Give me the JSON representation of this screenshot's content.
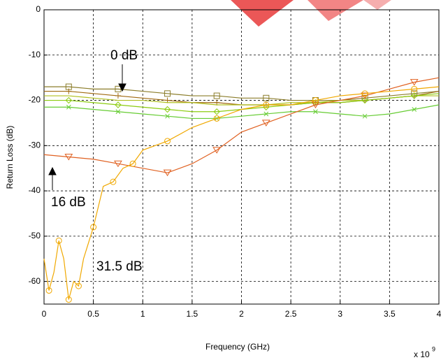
{
  "chart_data": {
    "type": "line",
    "xlabel": "Frequency (GHz)",
    "ylabel": "Return Loss (dB)",
    "x_scale_label": {
      "base": "x 10",
      "exponent": "9"
    },
    "annotations": [
      "0 dB",
      "16 dB",
      "31.5 dB"
    ],
    "xlim": [
      0,
      4
    ],
    "ylim": [
      -65,
      0
    ],
    "xticks": [
      0,
      0.5,
      1,
      1.5,
      2,
      2.5,
      3,
      3.5,
      4
    ],
    "yticks": [
      0,
      -10,
      -20,
      -30,
      -40,
      -50,
      -60
    ],
    "grid": true,
    "series": [
      {
        "color": "#8b7d2a",
        "marker": "square",
        "x": [
          0,
          0.25,
          0.5,
          0.75,
          1,
          1.25,
          1.5,
          1.75,
          2,
          2.25,
          2.5,
          2.75,
          3,
          3.25,
          3.5,
          3.75,
          4
        ],
        "values": [
          -17,
          -17,
          -17.5,
          -17.5,
          -18,
          -18.5,
          -19,
          -19,
          -19.5,
          -19.5,
          -20,
          -20,
          -20,
          -19.5,
          -19,
          -18.5,
          -18
        ]
      },
      {
        "color": "#a06a10",
        "marker": "plus",
        "x": [
          0,
          0.25,
          0.5,
          0.75,
          1,
          1.25,
          1.5,
          1.75,
          2,
          2.25,
          2.5,
          2.75,
          3,
          3.25,
          3.5,
          3.75,
          4
        ],
        "values": [
          -18,
          -18,
          -18.5,
          -19,
          -19.5,
          -20,
          -20.5,
          -20.5,
          -21,
          -21,
          -21,
          -20.5,
          -20.5,
          -20,
          -19.5,
          -19,
          -18
        ]
      },
      {
        "color": "#b0c020",
        "marker": "none",
        "x": [
          0,
          0.25,
          0.5,
          0.75,
          1,
          1.25,
          1.5,
          1.75,
          2,
          2.25,
          2.5,
          2.75,
          3,
          3.25,
          3.5,
          3.75,
          4
        ],
        "values": [
          -19,
          -19,
          -19.5,
          -20,
          -20,
          -20.5,
          -20.5,
          -21,
          -21,
          -21,
          -20.5,
          -20.5,
          -20,
          -20,
          -19.5,
          -19,
          -19
        ]
      },
      {
        "color": "#8ccc10",
        "marker": "diamond",
        "x": [
          0,
          0.25,
          0.5,
          0.75,
          1,
          1.25,
          1.5,
          1.75,
          2,
          2.25,
          2.5,
          2.75,
          3,
          3.25,
          3.5,
          3.75,
          4
        ],
        "values": [
          -20,
          -20,
          -20.5,
          -21,
          -21.5,
          -22,
          -22.5,
          -22.5,
          -22,
          -21.5,
          -21,
          -20.5,
          -20.5,
          -20,
          -19.5,
          -19,
          -18.5
        ]
      },
      {
        "color": "#66cc33",
        "marker": "cross",
        "x": [
          0,
          0.25,
          0.5,
          0.75,
          1,
          1.25,
          1.5,
          1.75,
          2,
          2.25,
          2.5,
          2.75,
          3,
          3.25,
          3.5,
          3.75,
          4
        ],
        "values": [
          -21.5,
          -21.5,
          -22,
          -22.5,
          -23,
          -23.5,
          -24,
          -24,
          -23.5,
          -23,
          -22.5,
          -22.5,
          -23,
          -23.5,
          -23,
          -22,
          -21
        ]
      },
      {
        "color": "#e06020",
        "marker": "triangle",
        "x": [
          0,
          0.25,
          0.5,
          0.75,
          1,
          1.25,
          1.5,
          1.75,
          2,
          2.25,
          2.5,
          2.75,
          3,
          3.25,
          3.5,
          3.75,
          4
        ],
        "values": [
          -32,
          -32.5,
          -33,
          -34,
          -35,
          -36,
          -34,
          -31,
          -27,
          -25,
          -23,
          -21,
          -20,
          -19,
          -17.5,
          -16,
          -15
        ]
      },
      {
        "color": "#f0a800",
        "marker": "circle",
        "x": [
          0,
          0.05,
          0.1,
          0.15,
          0.2,
          0.25,
          0.3,
          0.35,
          0.4,
          0.5,
          0.6,
          0.7,
          0.8,
          0.9,
          1,
          1.25,
          1.5,
          1.75,
          2,
          2.25,
          2.5,
          2.75,
          3,
          3.25,
          3.5,
          3.75,
          4
        ],
        "values": [
          -55,
          -62,
          -58,
          -51,
          -55,
          -64,
          -60,
          -61,
          -55,
          -48,
          -39,
          -38,
          -35,
          -34,
          -31,
          -29,
          -26,
          -24,
          -22,
          -21,
          -21,
          -20,
          -19,
          -18.5,
          -18,
          -17.5,
          -17
        ]
      }
    ]
  }
}
